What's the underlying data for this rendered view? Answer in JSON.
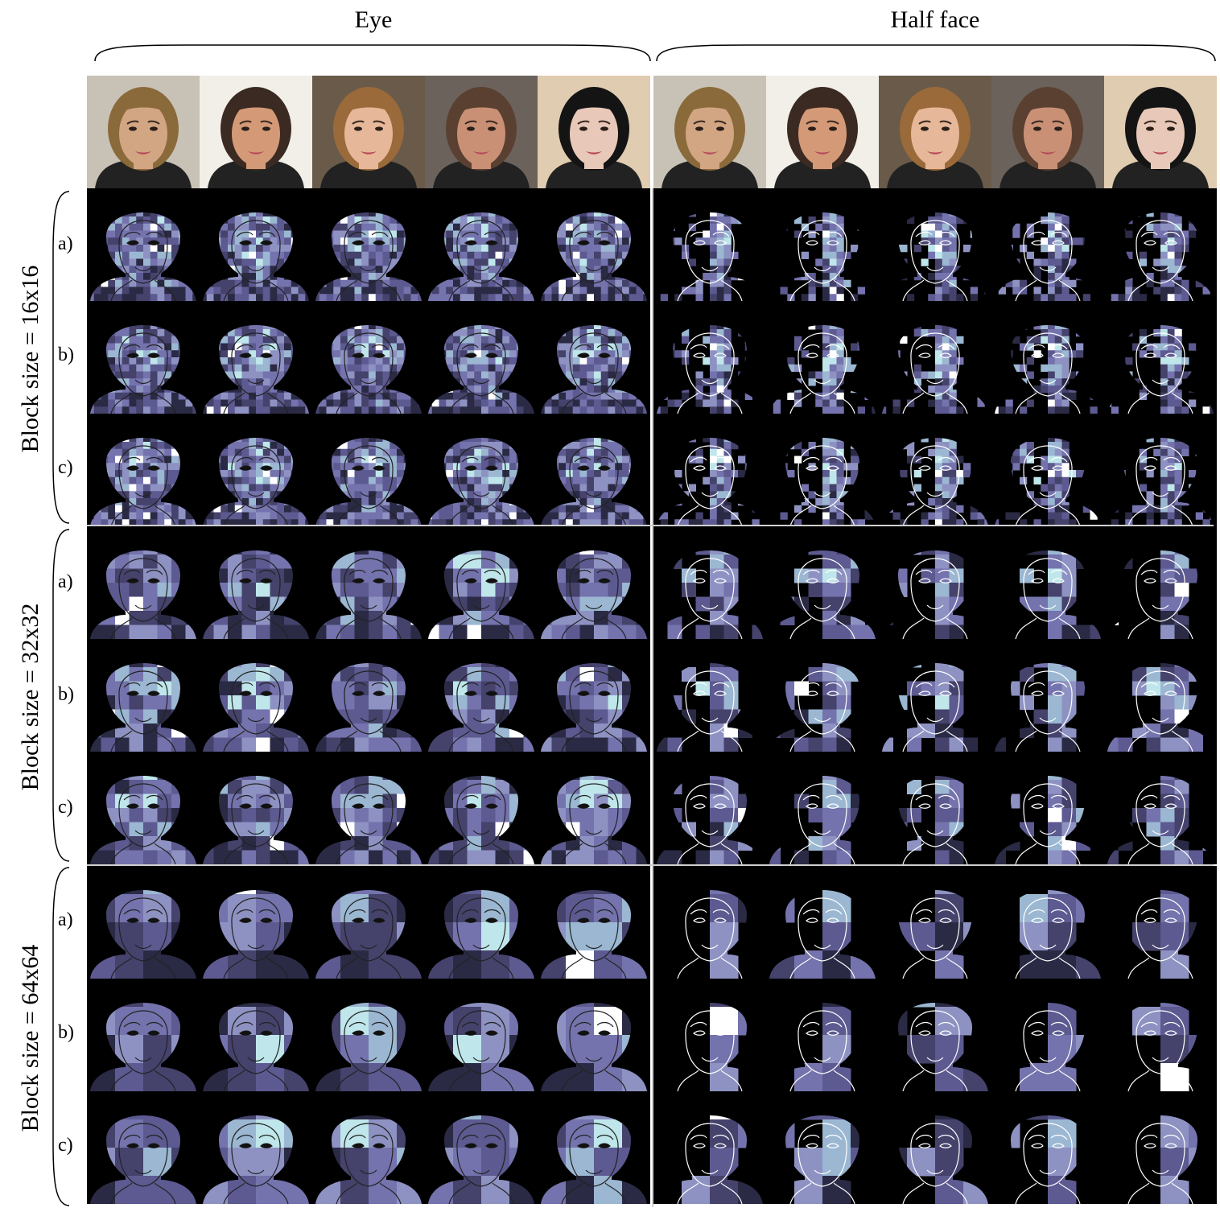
{
  "columns": {
    "eye": "Eye",
    "half_face": "Half face"
  },
  "groups": [
    {
      "label": "Block size = 16x16",
      "rows": [
        "a)",
        "b)",
        "c)"
      ]
    },
    {
      "label": "Block size = 32x32",
      "rows": [
        "a)",
        "b)",
        "c)"
      ]
    },
    {
      "label": "Block size = 64x64",
      "rows": [
        "a)",
        "b)",
        "c)"
      ]
    }
  ],
  "faces": [
    {
      "id": "man-blond",
      "skin": "#d2a583",
      "hair": "#8a6a3a",
      "bg": "#c8c2b6"
    },
    {
      "id": "woman-dark",
      "skin": "#d49a78",
      "hair": "#3b2a22",
      "bg": "#f2efe9"
    },
    {
      "id": "girl-smile",
      "skin": "#e6b798",
      "hair": "#9a6a3a",
      "bg": "#6a5a4a"
    },
    {
      "id": "woman-brown",
      "skin": "#c99076",
      "hair": "#5a4030",
      "bg": "#6b625c"
    },
    {
      "id": "woman-black",
      "skin": "#e8c8b8",
      "hair": "#141414",
      "bg": "#e0ccb0"
    }
  ],
  "colors": {
    "palette": [
      "#0b0b14",
      "#2a2a45",
      "#45426c",
      "#5c5a90",
      "#7473ad",
      "#8e92c2",
      "#9bb7d2",
      "#bfe6ea",
      "#ffffff"
    ],
    "outline_eye": "#222222",
    "outline_half": "#ffffff"
  }
}
